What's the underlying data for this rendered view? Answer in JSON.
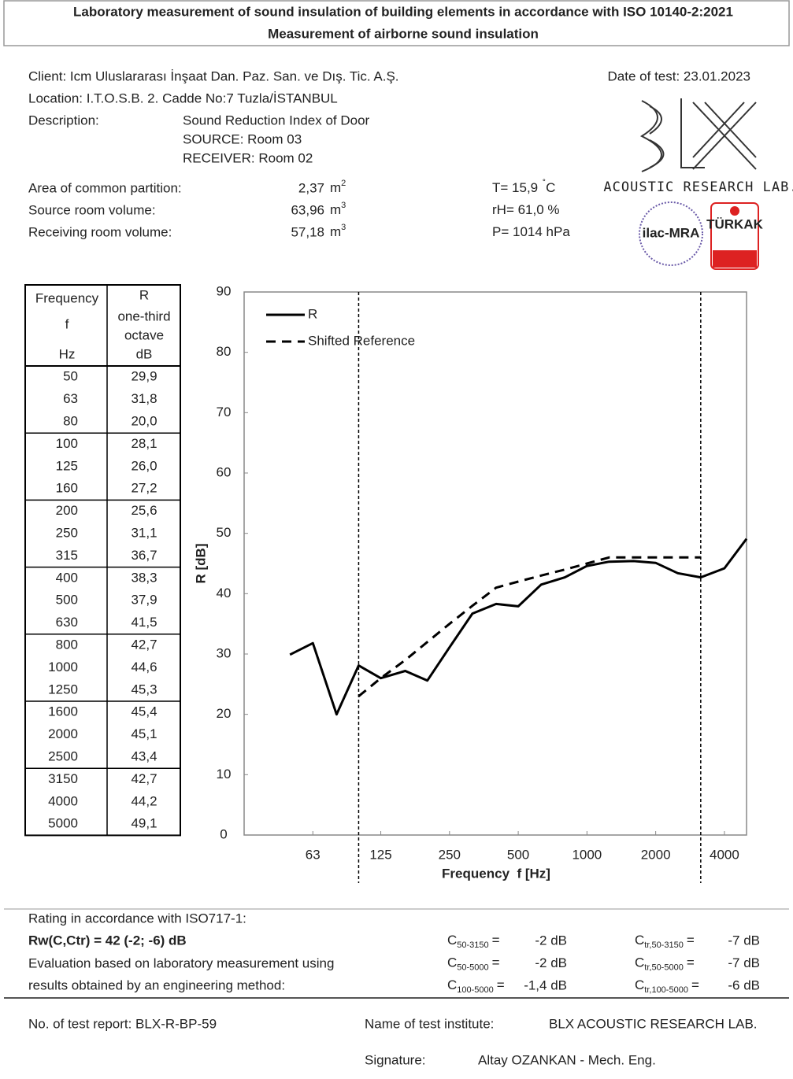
{
  "header": {
    "title": "Laboratory measurement of sound insulation of building elements in accordance with ISO 10140-2:2021",
    "subtitle": "Measurement of airborne sound insulation"
  },
  "info": {
    "client": "Client: Icm Uluslararası İnşaat Dan. Paz. San. ve Dış. Tic. A.Ş.",
    "location": "Location: I.T.O.S.B. 2. Cadde No:7 Tuzla/İSTANBUL",
    "date": "Date of test: 23.01.2023",
    "description_label": "Description:",
    "description": [
      "Sound Reduction Index of Door",
      "SOURCE: Room 03",
      "RECEIVER: Room 02"
    ]
  },
  "params": [
    {
      "label": "Area of common partition:",
      "value": "2,37",
      "unit": "m",
      "sup": "2"
    },
    {
      "label": "Source room volume:",
      "value": "63,96",
      "unit": "m",
      "sup": "3"
    },
    {
      "label": "Receiving room volume:",
      "value": "57,18",
      "unit": "m",
      "sup": "3"
    }
  ],
  "conditions": [
    {
      "text": "T= 15,9",
      "sup": "˚",
      "unit": "C"
    },
    {
      "text": "rH= 61,0 %"
    },
    {
      "text": "P= 1014 hPa"
    }
  ],
  "logo": {
    "lab": "ACOUSTIC RESEARCH LAB.",
    "ilac": "ilac-MRA",
    "turkak": "TÜRKAK"
  },
  "table": {
    "headers": [
      [
        "Frequency",
        "f",
        "Hz"
      ],
      [
        "R",
        "one-third",
        "octave",
        "dB"
      ]
    ],
    "rows": [
      [
        "50",
        "29,9"
      ],
      [
        "63",
        "31,8"
      ],
      [
        "80",
        "20,0"
      ],
      [
        "100",
        "28,1"
      ],
      [
        "125",
        "26,0"
      ],
      [
        "160",
        "27,2"
      ],
      [
        "200",
        "25,6"
      ],
      [
        "250",
        "31,1"
      ],
      [
        "315",
        "36,7"
      ],
      [
        "400",
        "38,3"
      ],
      [
        "500",
        "37,9"
      ],
      [
        "630",
        "41,5"
      ],
      [
        "800",
        "42,7"
      ],
      [
        "1000",
        "44,6"
      ],
      [
        "1250",
        "45,3"
      ],
      [
        "1600",
        "45,4"
      ],
      [
        "2000",
        "45,1"
      ],
      [
        "2500",
        "43,4"
      ],
      [
        "3150",
        "42,7"
      ],
      [
        "4000",
        "44,2"
      ],
      [
        "5000",
        "49,1"
      ]
    ]
  },
  "chart_data": {
    "type": "line",
    "x_label": "Frequency  f [Hz]",
    "y_label": "R [dB]",
    "x": [
      50,
      63,
      80,
      100,
      125,
      160,
      200,
      250,
      315,
      400,
      500,
      630,
      800,
      1000,
      1250,
      1600,
      2000,
      2500,
      3150,
      4000,
      5000
    ],
    "log_x": true,
    "xlim": [
      31.5,
      5000
    ],
    "xticks": [
      63,
      125,
      250,
      500,
      1000,
      2000,
      4000
    ],
    "ylim": [
      0,
      90
    ],
    "yticks": [
      0,
      10,
      20,
      30,
      40,
      50,
      60,
      70,
      80,
      90
    ],
    "reference_range": [
      100,
      3150
    ],
    "legend": "top-left",
    "series": [
      {
        "name": "R",
        "color": "#000000",
        "dashed": false,
        "values": [
          29.9,
          31.8,
          20.0,
          28.1,
          26.0,
          27.2,
          25.6,
          31.1,
          36.7,
          38.3,
          37.9,
          41.5,
          42.7,
          44.6,
          45.3,
          45.4,
          45.1,
          43.4,
          42.7,
          44.2,
          49.1
        ]
      },
      {
        "name": "Shifted Reference",
        "color": "#000000",
        "dashed": true,
        "values": [
          null,
          null,
          null,
          23,
          26,
          29,
          32,
          35,
          38,
          41,
          42,
          43,
          44,
          45,
          46,
          46,
          46,
          46,
          46,
          null,
          null
        ]
      }
    ]
  },
  "rating": {
    "heading": "Rating in accordance with ISO717-1:",
    "result": "Rw(C,Ctr) = 42 (-2; -6) dB",
    "note": [
      "Evaluation based on laboratory measurement using",
      "results obtained by an engineering method:"
    ],
    "terms": [
      [
        {
          "symbol": "C",
          "sub": "50-3150",
          "eq": "=",
          "value": "-2 dB"
        },
        {
          "symbol": "C",
          "sub": "tr,50-3150",
          "eq": "=",
          "value": "-7 dB"
        }
      ],
      [
        {
          "symbol": "C",
          "sub": "50-5000",
          "eq": "=",
          "value": "-2 dB"
        },
        {
          "symbol": "C",
          "sub": "tr,50-5000",
          "eq": "=",
          "value": "-7 dB"
        }
      ],
      [
        {
          "symbol": "C",
          "sub": "100-5000",
          "eq": "=",
          "value": "-1,4 dB"
        },
        {
          "symbol": "C",
          "sub": "tr,100-5000",
          "eq": "=",
          "value": "-6 dB"
        }
      ]
    ]
  },
  "footer": {
    "report": "No. of test report: BLX-R-BP-59",
    "institute_label": "Name of test institute:",
    "institute": "BLX ACOUSTIC RESEARCH LAB.",
    "signature_label": "Signature:",
    "signature": "Altay OZANKAN - Mech. Eng."
  }
}
